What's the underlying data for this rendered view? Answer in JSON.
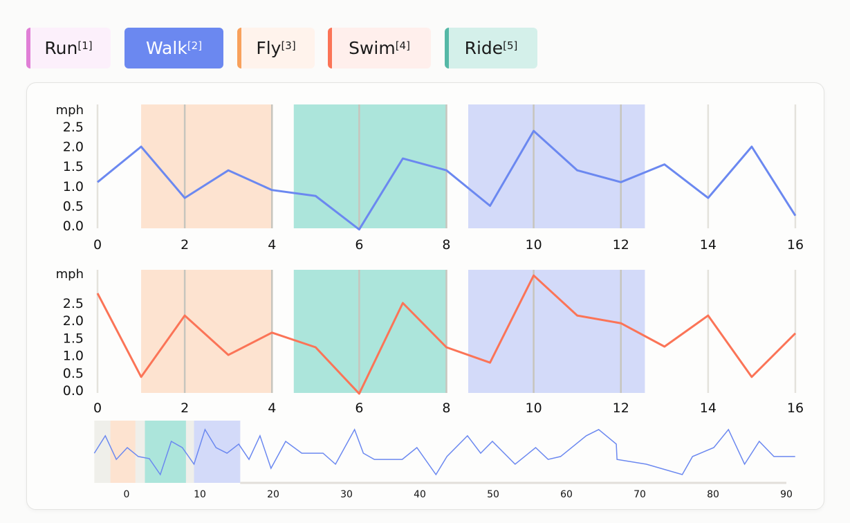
{
  "legend": [
    {
      "label": "Run",
      "ref": "[1]",
      "color": "#e07fd6",
      "bg": "#fcf0fb",
      "active": false
    },
    {
      "label": "Walk",
      "ref": "[2]",
      "color": "#6b88f0",
      "bg": "#6b88f0",
      "active": true
    },
    {
      "label": "Fly",
      "ref": "[3]",
      "color": "#f8a15c",
      "bg": "#fff3ec",
      "active": false
    },
    {
      "label": "Swim",
      "ref": "[4]",
      "color": "#fb7457",
      "bg": "#ffefec",
      "active": false
    },
    {
      "label": "Ride",
      "ref": "[5]",
      "color": "#55b8a6",
      "bg": "#d4f0ea",
      "active": false
    }
  ],
  "chart_data": [
    {
      "type": "line",
      "ylabel": "mph",
      "ylim": [
        0,
        2.5
      ],
      "yticks": [
        "0.0",
        "0.5",
        "1.0",
        "1.5",
        "2.0",
        "2.5"
      ],
      "xlim": [
        0,
        16
      ],
      "xticks": [
        "0",
        "2",
        "4",
        "6",
        "8",
        "10",
        "12",
        "14",
        "16"
      ],
      "grid": "vertical",
      "color": "#6b88f0",
      "x": [
        0,
        1,
        2,
        3,
        4,
        5,
        6,
        7,
        8,
        9,
        10,
        11,
        12,
        13,
        14,
        15,
        16
      ],
      "y": [
        1.1,
        2.0,
        0.7,
        1.4,
        0.9,
        0.75,
        -0.1,
        1.7,
        1.4,
        0.5,
        2.4,
        1.4,
        1.1,
        1.55,
        0.7,
        2.0,
        0.25
      ],
      "bands": [
        {
          "from": 1.0,
          "to": 4.0,
          "color": "#fde3d0"
        },
        {
          "from": 4.5,
          "to": 8.0,
          "color": "#ace5db"
        },
        {
          "from": 8.5,
          "to": 12.55,
          "color": "#d3daf9"
        }
      ]
    },
    {
      "type": "line",
      "ylabel": "mph",
      "ylim": [
        0,
        2.5
      ],
      "yticks": [
        "0.0",
        "0.5",
        "1.0",
        "1.5",
        "2.0",
        "2.5"
      ],
      "xlim": [
        0,
        16
      ],
      "xticks": [
        "0",
        "2",
        "4",
        "6",
        "8",
        "10",
        "12",
        "14",
        "16"
      ],
      "grid": "vertical",
      "color": "#fb7457",
      "x": [
        0,
        1,
        2,
        3,
        4,
        5,
        6,
        7,
        8,
        9,
        10,
        11,
        12,
        13,
        14,
        15,
        16
      ],
      "y": [
        2.78,
        0.38,
        2.14,
        1.01,
        1.65,
        1.23,
        -0.1,
        2.5,
        1.23,
        0.79,
        3.29,
        2.14,
        1.92,
        1.25,
        2.14,
        0.38,
        1.63
      ],
      "bands": [
        {
          "from": 1.0,
          "to": 4.0,
          "color": "#fde3d0"
        },
        {
          "from": 4.5,
          "to": 8.0,
          "color": "#ace5db"
        },
        {
          "from": 8.5,
          "to": 12.55,
          "color": "#d3daf9"
        }
      ]
    },
    {
      "type": "line",
      "role": "overview",
      "xlim": [
        -4.4,
        91.2
      ],
      "ylim": [
        0,
        3
      ],
      "xticks": [
        "0",
        "10",
        "20",
        "30",
        "40",
        "50",
        "60",
        "70",
        "80",
        "90"
      ],
      "color": "#6b88f0",
      "selection": {
        "from": -4.4,
        "to": 15.5,
        "color": "#efefea"
      },
      "bands": [
        {
          "from": -2.2,
          "to": 1.2,
          "color": "#fde3d0"
        },
        {
          "from": 2.5,
          "to": 8.1,
          "color": "#ace5db"
        },
        {
          "from": 9.2,
          "to": 15.5,
          "color": "#d3daf9"
        }
      ],
      "x": [
        -4.4,
        -2.9,
        -1.4,
        0.1,
        1.6,
        3.1,
        4.6,
        6.1,
        7.6,
        9.2,
        10.7,
        12.2,
        13.7,
        15.3,
        16.7,
        18.2,
        19.7,
        21.7,
        23.9,
        26.8,
        28.5,
        31.1,
        32.3,
        33.8,
        37.6,
        39.6,
        42.2,
        43.7,
        46.5,
        48.3,
        49.9,
        53.0,
        55.8,
        57.5,
        59.2,
        62.7,
        64.4,
        66.8,
        66.9,
        70.9,
        75.8,
        77.2,
        80.1,
        82.1,
        84.3,
        86.3,
        88.3,
        91.2
      ],
      "y": [
        1.43,
        2.27,
        1.13,
        1.7,
        1.27,
        1.17,
        0.4,
        2.0,
        1.7,
        0.9,
        2.57,
        1.7,
        1.43,
        1.87,
        1.13,
        2.27,
        0.7,
        2.0,
        1.43,
        1.43,
        0.9,
        2.57,
        1.43,
        1.13,
        1.13,
        1.7,
        0.4,
        1.27,
        2.27,
        1.43,
        2.0,
        0.9,
        1.7,
        1.13,
        1.27,
        2.27,
        2.57,
        1.87,
        1.13,
        0.9,
        0.4,
        1.27,
        1.7,
        2.57,
        0.9,
        2.0,
        1.27,
        1.27
      ]
    }
  ]
}
